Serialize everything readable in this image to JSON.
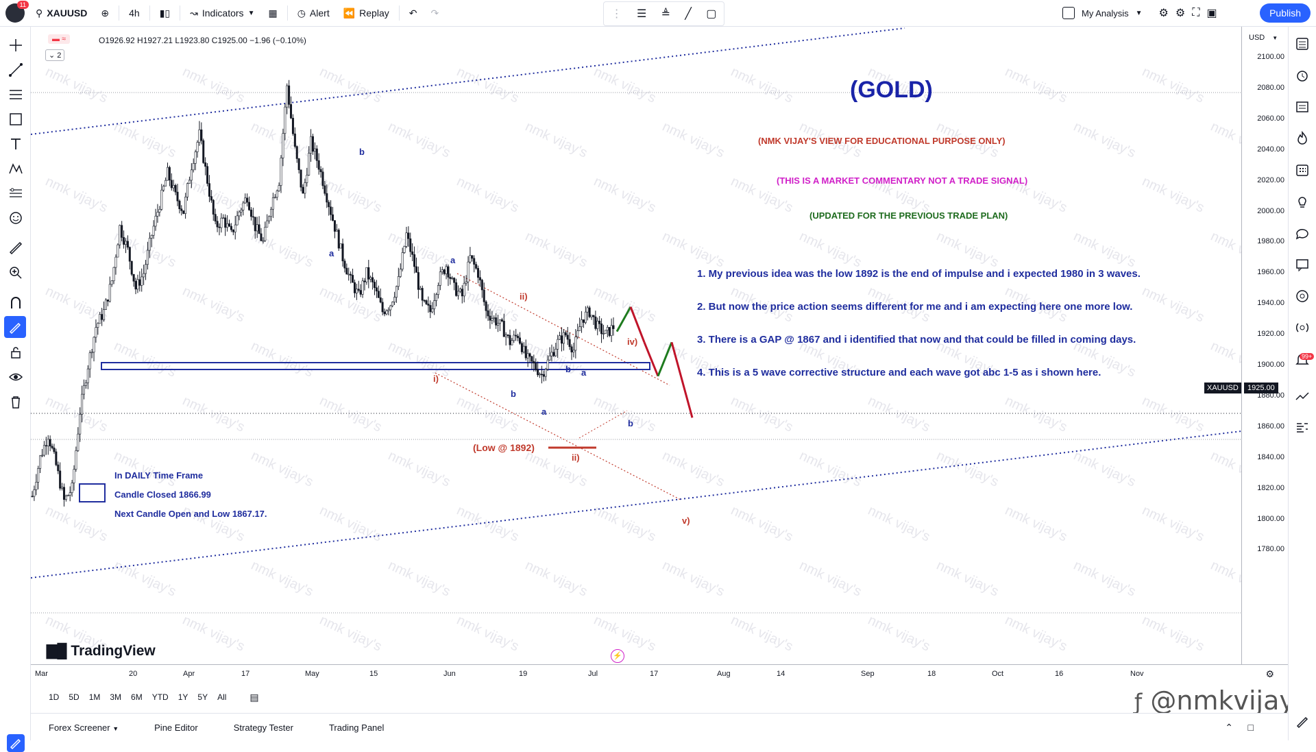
{
  "topbar": {
    "badge_count": "11",
    "symbol": "XAUUSD",
    "interval": "4h",
    "indicators_label": "Indicators",
    "alert_label": "Alert",
    "replay_label": "Replay",
    "layout_name": "My Analysis",
    "publish_label": "Publish"
  },
  "legend": {
    "ohlc": "O1926.92 H1927.21 L1923.80 C1925.00 −1.96 (−0.10%)",
    "collapse_count": "2"
  },
  "annotations": {
    "title": "(GOLD)",
    "disclaimer": "(NMK VIJAY'S VIEW FOR EDUCATIONAL PURPOSE ONLY)",
    "commentary": "(THIS IS A MARKET COMMENTARY NOT A TRADE SIGNAL)",
    "updated": "(UPDATED FOR THE PREVIOUS TRADE PLAN)",
    "points": [
      "1. My previous idea was the low 1892 is the end of impulse and i expected 1980 in 3 waves.",
      "2. But now the price action seems different for me and i am expecting here one more low.",
      "3. There is a GAP @ 1867 and i identified that now and that could be filled in coming days.",
      "4. This is a 5 wave corrective structure and each wave got abc 1-5 as i shown here."
    ],
    "daily_lines": [
      "In DAILY Time Frame",
      "Candle Closed 1866.99",
      "Next Candle Open and Low 1867.17."
    ],
    "low_label": "(Low @ 1892)",
    "waves": {
      "a1": "a",
      "b1": "b",
      "a2": "a",
      "b2": "b",
      "i": "i)",
      "ii_top": "ii)",
      "ii_bottom": "ii)",
      "iv": "iv)",
      "v": "v)",
      "a3": "a",
      "b3": "b",
      "a4": "a",
      "b4": "b"
    },
    "watermark": "nmk vijay's",
    "signature": "@nmkvijay",
    "brand": "TradingView"
  },
  "price_axis": {
    "currency": "USD",
    "labels": [
      "2100.00",
      "2080.00",
      "2060.00",
      "2040.00",
      "2020.00",
      "2000.00",
      "1980.00",
      "1960.00",
      "1940.00",
      "1920.00",
      "1900.00",
      "1880.00",
      "1860.00",
      "1840.00",
      "1820.00",
      "1800.00",
      "1780.00"
    ],
    "current_symbol": "XAUUSD",
    "current_price": "1925.00"
  },
  "time_axis": {
    "labels": [
      "Mar",
      "20",
      "Apr",
      "17",
      "May",
      "15",
      "Jun",
      "19",
      "Jul",
      "17",
      "Aug",
      "14",
      "Sep",
      "18",
      "Oct",
      "16",
      "Nov"
    ]
  },
  "range_buttons": [
    "1D",
    "5D",
    "1M",
    "3M",
    "6M",
    "YTD",
    "1Y",
    "5Y",
    "All"
  ],
  "bottom_tabs": [
    "Forex Screener",
    "Pine Editor",
    "Strategy Tester",
    "Trading Panel"
  ],
  "right_badge": "99+",
  "chart_data": {
    "type": "candlestick",
    "symbol": "XAUUSD",
    "interval": "4h",
    "ylim": [
      1780,
      2110
    ],
    "last_close": 1925.0,
    "path": [
      1815,
      1840,
      1855,
      1835,
      1812,
      1820,
      1870,
      1900,
      1925,
      1935,
      1955,
      1990,
      1975,
      1950,
      1960,
      1985,
      2005,
      2025,
      2010,
      2000,
      2030,
      2050,
      2020,
      1990,
      1995,
      1985,
      2000,
      2010,
      1990,
      1980,
      2005,
      2020,
      2082,
      2040,
      2010,
      2045,
      2030,
      2010,
      1990,
      1970,
      1955,
      1945,
      1960,
      1950,
      1935,
      1940,
      1955,
      1985,
      1965,
      1940,
      1935,
      1955,
      1965,
      1950,
      1945,
      1970,
      1960,
      1935,
      1930,
      1925,
      1915,
      1920,
      1905,
      1900,
      1894,
      1905,
      1915,
      1920,
      1910,
      1930,
      1935,
      1925,
      1920,
      1925
    ],
    "projection": [
      1922,
      1938,
      1915,
      1893,
      1915,
      1866
    ]
  }
}
